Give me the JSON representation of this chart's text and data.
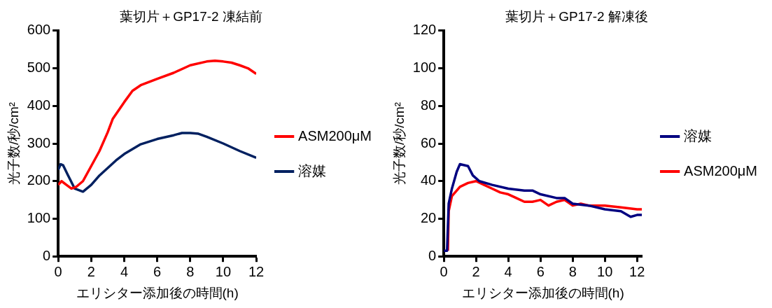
{
  "chart_data": [
    {
      "type": "line",
      "title": "葉切片＋GP17-2 凍結前",
      "xlabel": "エリシター添加後の時間(h)",
      "ylabel": "光子数/秒/cm²",
      "xlim": [
        0,
        12
      ],
      "xticks": [
        0,
        2,
        4,
        6,
        8,
        10,
        12
      ],
      "ylim": [
        0,
        600
      ],
      "yticks": [
        0,
        100,
        200,
        300,
        400,
        500,
        600
      ],
      "grid": false,
      "legend": "right",
      "marker": "none",
      "line_style": "solid",
      "series": [
        {
          "name": "ASM200μM",
          "color": "#ff0000",
          "x": [
            0,
            0.2,
            0.5,
            0.8,
            1.1,
            1.5,
            2,
            2.5,
            3,
            3.3,
            4,
            4.5,
            5,
            6,
            7,
            8,
            9,
            9.5,
            10,
            10.5,
            11,
            11.5,
            12
          ],
          "values": [
            190,
            200,
            190,
            180,
            185,
            200,
            240,
            280,
            330,
            365,
            410,
            440,
            455,
            472,
            488,
            508,
            518,
            520,
            518,
            515,
            508,
            500,
            485
          ]
        },
        {
          "name": "溶媒",
          "color": "#002060",
          "x": [
            0,
            0.15,
            0.3,
            0.6,
            1,
            1.5,
            2,
            2.5,
            3,
            3.5,
            4,
            4.5,
            5,
            6,
            7,
            7.5,
            8,
            8.5,
            9,
            10,
            11,
            12
          ],
          "values": [
            230,
            245,
            242,
            215,
            180,
            172,
            190,
            215,
            235,
            255,
            272,
            285,
            298,
            312,
            322,
            328,
            328,
            326,
            318,
            300,
            280,
            262
          ]
        }
      ]
    },
    {
      "type": "line",
      "title": "葉切片＋GP17-2 解凍後",
      "xlabel": "エリシター添加後の時間(h)",
      "ylabel": "光子数/秒/cm²",
      "xlim": [
        0,
        12.3
      ],
      "xticks": [
        0,
        2,
        4,
        6,
        8,
        10,
        12
      ],
      "ylim": [
        0,
        120
      ],
      "yticks": [
        0,
        20,
        40,
        60,
        80,
        100,
        120
      ],
      "grid": false,
      "legend": "right",
      "marker": "none",
      "line_style": "solid",
      "series": [
        {
          "name": "溶媒",
          "color": "#000080",
          "x": [
            0,
            0.2,
            0.3,
            0.5,
            0.8,
            1,
            1.5,
            1.8,
            2.2,
            3,
            4,
            5,
            5.5,
            6,
            7,
            7.5,
            8,
            9,
            10,
            11,
            11.6,
            12,
            12.3
          ],
          "values": [
            3,
            3,
            28,
            36,
            45,
            49,
            48,
            43,
            40,
            38,
            36,
            35,
            35,
            33,
            31,
            31,
            28,
            27,
            25,
            24,
            21,
            22,
            22
          ]
        },
        {
          "name": "ASM200μM",
          "color": "#ff0000",
          "x": [
            0.25,
            0.3,
            0.5,
            1,
            1.5,
            2,
            2.5,
            3,
            3.5,
            4,
            4.5,
            5,
            5.5,
            6,
            6.5,
            7,
            7.5,
            8,
            8.5,
            9,
            10,
            11,
            12,
            12.3
          ],
          "values": [
            3,
            24,
            32,
            37,
            39,
            40,
            38,
            36,
            34,
            33,
            31,
            29,
            29,
            30,
            27,
            29,
            30,
            27,
            28,
            27,
            27,
            26,
            25,
            25
          ]
        }
      ]
    }
  ]
}
